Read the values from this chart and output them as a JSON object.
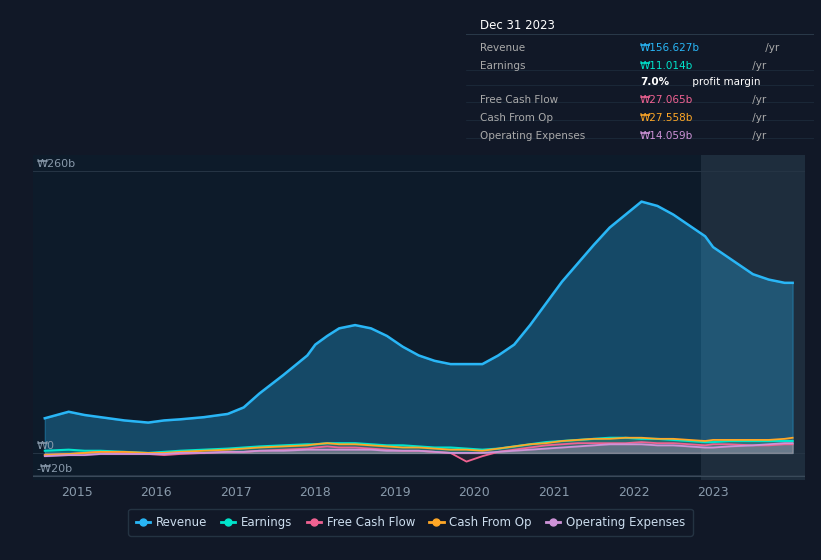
{
  "background_color": "#111827",
  "plot_bg_color": "#0d1b2a",
  "highlight_bg_color": "#1e2d3d",
  "grid_color": "#1e2d40",
  "years": [
    2014.6,
    2014.9,
    2015.1,
    2015.3,
    2015.6,
    2015.9,
    2016.1,
    2016.3,
    2016.6,
    2016.9,
    2017.1,
    2017.3,
    2017.6,
    2017.9,
    2018.0,
    2018.15,
    2018.3,
    2018.5,
    2018.7,
    2018.9,
    2019.1,
    2019.3,
    2019.5,
    2019.7,
    2019.9,
    2020.1,
    2020.3,
    2020.5,
    2020.7,
    2020.9,
    2021.1,
    2021.3,
    2021.5,
    2021.7,
    2021.9,
    2022.1,
    2022.3,
    2022.5,
    2022.7,
    2022.9,
    2023.0,
    2023.2,
    2023.5,
    2023.7,
    2023.9,
    2024.0
  ],
  "revenue": [
    32,
    38,
    35,
    33,
    30,
    28,
    30,
    31,
    33,
    36,
    42,
    55,
    72,
    90,
    100,
    108,
    115,
    118,
    115,
    108,
    98,
    90,
    85,
    82,
    82,
    82,
    90,
    100,
    118,
    138,
    158,
    175,
    192,
    208,
    220,
    232,
    228,
    220,
    210,
    200,
    190,
    180,
    165,
    160,
    157,
    157
  ],
  "earnings": [
    2,
    3,
    2,
    2,
    1,
    0,
    1,
    2,
    3,
    4,
    5,
    6,
    7,
    8,
    8,
    9,
    9,
    9,
    8,
    7,
    7,
    6,
    5,
    5,
    4,
    3,
    4,
    6,
    8,
    10,
    11,
    12,
    13,
    14,
    14,
    13,
    13,
    12,
    11,
    10,
    10,
    11,
    11,
    11,
    11,
    11
  ],
  "free_cash_flow": [
    -2,
    -1,
    0,
    1,
    0,
    -1,
    -2,
    -1,
    0,
    1,
    1,
    2,
    3,
    4,
    5,
    6,
    5,
    5,
    4,
    3,
    2,
    2,
    1,
    0,
    -8,
    -3,
    1,
    3,
    5,
    7,
    8,
    9,
    9,
    9,
    9,
    10,
    9,
    9,
    8,
    7,
    8,
    8,
    7,
    7,
    8,
    8
  ],
  "cash_from_op": [
    -2,
    -1,
    0,
    1,
    1,
    0,
    0,
    1,
    2,
    3,
    4,
    5,
    6,
    7,
    8,
    9,
    8,
    8,
    7,
    6,
    5,
    5,
    4,
    3,
    3,
    2,
    4,
    6,
    8,
    9,
    11,
    12,
    13,
    13,
    14,
    14,
    13,
    13,
    12,
    11,
    12,
    12,
    12,
    12,
    13,
    14
  ],
  "op_expenses": [
    -3,
    -2,
    -2,
    -1,
    -1,
    -1,
    -1,
    0,
    0,
    1,
    1,
    2,
    2,
    3,
    3,
    3,
    3,
    3,
    3,
    2,
    2,
    2,
    1,
    0,
    0,
    0,
    1,
    2,
    3,
    4,
    5,
    6,
    7,
    8,
    8,
    8,
    7,
    7,
    6,
    5,
    5,
    6,
    7,
    8,
    9,
    9
  ],
  "revenue_color": "#29b6f6",
  "earnings_color": "#00e5cc",
  "free_cash_flow_color": "#f06292",
  "cash_from_op_color": "#ffa726",
  "op_expenses_color": "#ce93d8",
  "highlight_x_start": 2022.85,
  "highlight_x_end": 2024.15,
  "x_ticks": [
    2015,
    2016,
    2017,
    2018,
    2019,
    2020,
    2021,
    2022,
    2023
  ],
  "x_tick_labels": [
    "2015",
    "2016",
    "2017",
    "2018",
    "2019",
    "2020",
    "2021",
    "2022",
    "2023"
  ],
  "ylim_min": -25,
  "ylim_max": 275,
  "xlim_min": 2014.45,
  "xlim_max": 2024.15,
  "legend_items": [
    {
      "label": "Revenue",
      "color": "#29b6f6"
    },
    {
      "label": "Earnings",
      "color": "#00e5cc"
    },
    {
      "label": "Free Cash Flow",
      "color": "#f06292"
    },
    {
      "label": "Cash From Op",
      "color": "#ffa726"
    },
    {
      "label": "Operating Expenses",
      "color": "#ce93d8"
    }
  ]
}
